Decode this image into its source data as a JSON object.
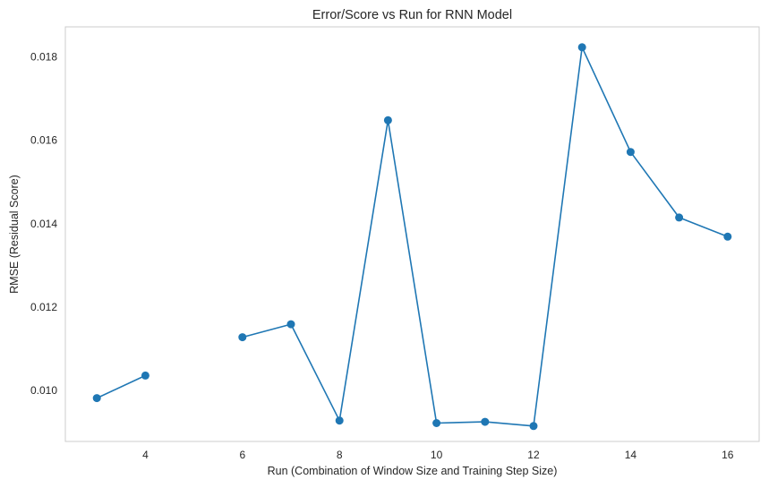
{
  "chart_data": {
    "type": "line",
    "title": "Error/Score vs Run for RNN Model",
    "xlabel": "Run (Combination of Window Size and Training Step Size)",
    "ylabel": "RMSE (Residual Score)",
    "xlim": [
      2.35,
      16.65
    ],
    "ylim": [
      0.00878,
      0.01872
    ],
    "xticks": [
      4,
      6,
      8,
      10,
      12,
      14,
      16
    ],
    "xtick_labels": [
      "4",
      "6",
      "8",
      "10",
      "12",
      "14",
      "16"
    ],
    "yticks": [
      0.01,
      0.012,
      0.014,
      0.016,
      0.018
    ],
    "ytick_labels": [
      "0.010",
      "0.012",
      "0.014",
      "0.016",
      "0.018"
    ],
    "grid": false,
    "series": [
      {
        "color": "#1f77b4",
        "marker": "circle",
        "x": [
          3,
          4,
          5,
          6,
          7,
          8,
          9,
          10,
          11,
          12,
          13,
          14,
          15,
          16
        ],
        "y": [
          0.00982,
          0.01036,
          null,
          0.01128,
          0.01159,
          0.00928,
          0.01648,
          0.00922,
          0.00925,
          0.00915,
          0.01823,
          0.01572,
          0.01415,
          0.01369
        ]
      }
    ]
  }
}
